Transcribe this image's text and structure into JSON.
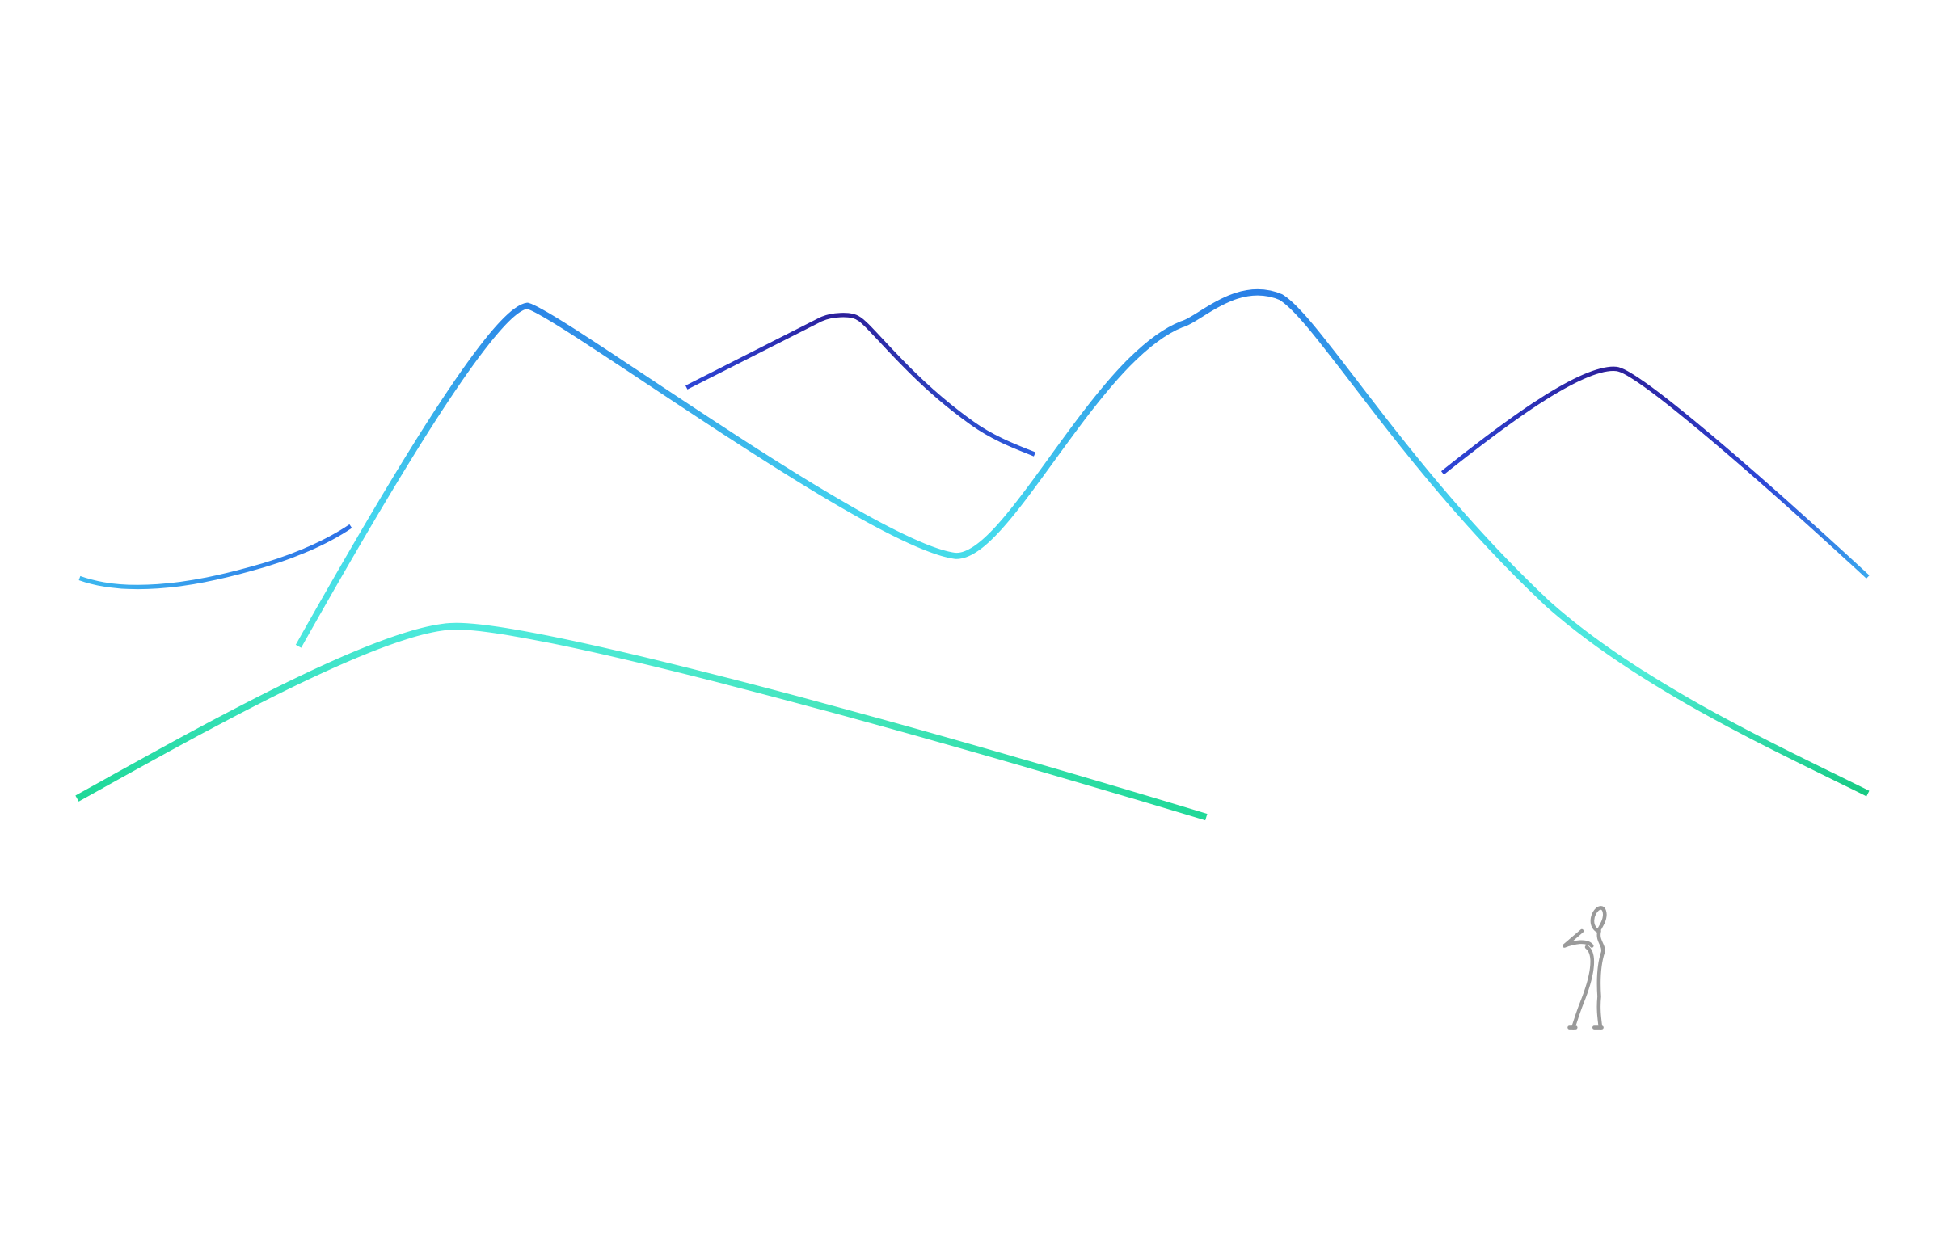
{
  "scene": {
    "description_free": true,
    "background_color": "#ffffff",
    "palette": {
      "navy": "#2c1f9a",
      "royal_blue": "#2d46d6",
      "blue": "#2a7fe6",
      "sky_blue": "#3cb8ef",
      "cyan": "#4fe8e4",
      "aqua": "#4ff0d0",
      "green": "#1fd897",
      "emerald": "#14c97f",
      "figure_gray": "#9a9a9a"
    }
  }
}
